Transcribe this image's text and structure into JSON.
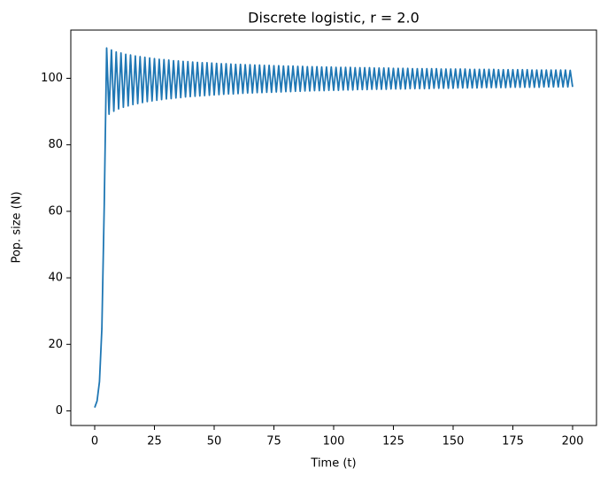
{
  "chart_data": {
    "type": "line",
    "title": "Discrete logistic, r = 2.0",
    "x_label": "Time (t)",
    "y_label": "Pop. size (N)",
    "x": [
      0,
      1,
      2,
      3,
      4,
      5,
      6,
      7,
      8,
      9,
      10,
      11,
      12,
      13,
      14,
      15,
      16,
      17,
      18,
      19,
      20,
      21,
      22,
      23,
      24,
      25,
      26,
      27,
      28,
      29,
      30,
      31,
      32,
      33,
      34,
      35,
      36,
      37,
      38,
      39,
      40,
      41,
      42,
      43,
      44,
      45,
      46,
      47,
      48,
      49,
      50,
      51,
      52,
      53,
      54,
      55,
      56,
      57,
      58,
      59,
      60,
      61,
      62,
      63,
      64,
      65,
      66,
      67,
      68,
      69,
      70,
      71,
      72,
      73,
      74,
      75,
      76,
      77,
      78,
      79,
      80,
      81,
      82,
      83,
      84,
      85,
      86,
      87,
      88,
      89,
      90,
      91,
      92,
      93,
      94,
      95,
      96,
      97,
      98,
      99,
      100,
      101,
      102,
      103,
      104,
      105,
      106,
      107,
      108,
      109,
      110,
      111,
      112,
      113,
      114,
      115,
      116,
      117,
      118,
      119,
      120,
      121,
      122,
      123,
      124,
      125,
      126,
      127,
      128,
      129,
      130,
      131,
      132,
      133,
      134,
      135,
      136,
      137,
      138,
      139,
      140,
      141,
      142,
      143,
      144,
      145,
      146,
      147,
      148,
      149,
      150,
      151,
      152,
      153,
      154,
      155,
      156,
      157,
      158,
      159,
      160,
      161,
      162,
      163,
      164,
      165,
      166,
      167,
      168,
      169,
      170,
      171,
      172,
      173,
      174,
      175,
      176,
      177,
      178,
      179,
      180,
      181,
      182,
      183,
      184,
      185,
      186,
      187,
      188,
      189,
      190,
      191,
      192,
      193,
      194,
      195,
      196,
      197,
      198,
      199,
      200
    ],
    "series": [
      {
        "color": "#1f77b4",
        "values": [
          1,
          3.0,
          8.8,
          24.7,
          62.0,
          109.1,
          89.2,
          108.5,
          90.1,
          107.9,
          90.8,
          107.6,
          91.3,
          107.2,
          91.7,
          107.0,
          92.1,
          106.7,
          92.4,
          106.5,
          92.7,
          106.3,
          93.0,
          106.1,
          93.2,
          105.9,
          93.4,
          105.7,
          93.6,
          105.6,
          93.8,
          105.5,
          93.9,
          105.3,
          94.1,
          105.2,
          94.2,
          105.1,
          94.4,
          105.0,
          94.5,
          104.9,
          94.6,
          104.8,
          94.7,
          104.7,
          94.8,
          104.7,
          94.9,
          104.6,
          95.0,
          104.5,
          95.1,
          104.4,
          95.2,
          104.4,
          95.3,
          104.3,
          95.3,
          104.2,
          95.4,
          104.2,
          95.5,
          104.1,
          95.6,
          104.1,
          95.6,
          104.0,
          95.7,
          104.0,
          95.7,
          103.9,
          95.8,
          103.9,
          95.8,
          103.8,
          95.9,
          103.8,
          95.9,
          103.7,
          96.0,
          103.7,
          96.0,
          103.7,
          96.1,
          103.6,
          96.1,
          103.6,
          96.2,
          103.5,
          96.2,
          103.5,
          96.3,
          103.5,
          96.3,
          103.4,
          96.3,
          103.4,
          96.4,
          103.4,
          96.4,
          103.3,
          96.4,
          103.3,
          96.5,
          103.3,
          96.5,
          103.3,
          96.5,
          103.2,
          96.6,
          103.2,
          96.6,
          103.2,
          96.6,
          103.2,
          96.7,
          103.1,
          96.7,
          103.1,
          96.7,
          103.1,
          96.7,
          103.1,
          96.8,
          103.0,
          96.8,
          103.0,
          96.8,
          103.0,
          96.8,
          103.0,
          96.9,
          102.9,
          96.9,
          102.9,
          96.9,
          102.9,
          96.9,
          102.9,
          96.9,
          102.9,
          97.0,
          102.9,
          97.0,
          102.8,
          97.0,
          102.8,
          97.0,
          102.8,
          97.0,
          102.8,
          97.1,
          102.8,
          97.1,
          102.8,
          97.1,
          102.7,
          97.1,
          102.7,
          97.1,
          102.7,
          97.2,
          102.7,
          97.2,
          102.7,
          97.2,
          102.7,
          97.2,
          102.6,
          97.2,
          102.6,
          97.2,
          102.6,
          97.3,
          102.6,
          97.3,
          102.6,
          97.3,
          102.6,
          97.3,
          102.6,
          97.3,
          102.5,
          97.3,
          102.5,
          97.3,
          102.5,
          97.4,
          102.5,
          97.4,
          102.5,
          97.4,
          102.5,
          97.4,
          102.5,
          97.4,
          102.5,
          97.4,
          102.4,
          97.4
        ]
      }
    ],
    "xlim": [
      -10,
      210
    ],
    "ylim": [
      -4.4,
      114.5
    ],
    "xticks": [
      0,
      25,
      50,
      75,
      100,
      125,
      150,
      175,
      200
    ],
    "yticks": [
      0,
      20,
      40,
      60,
      80,
      100
    ],
    "grid": false
  }
}
